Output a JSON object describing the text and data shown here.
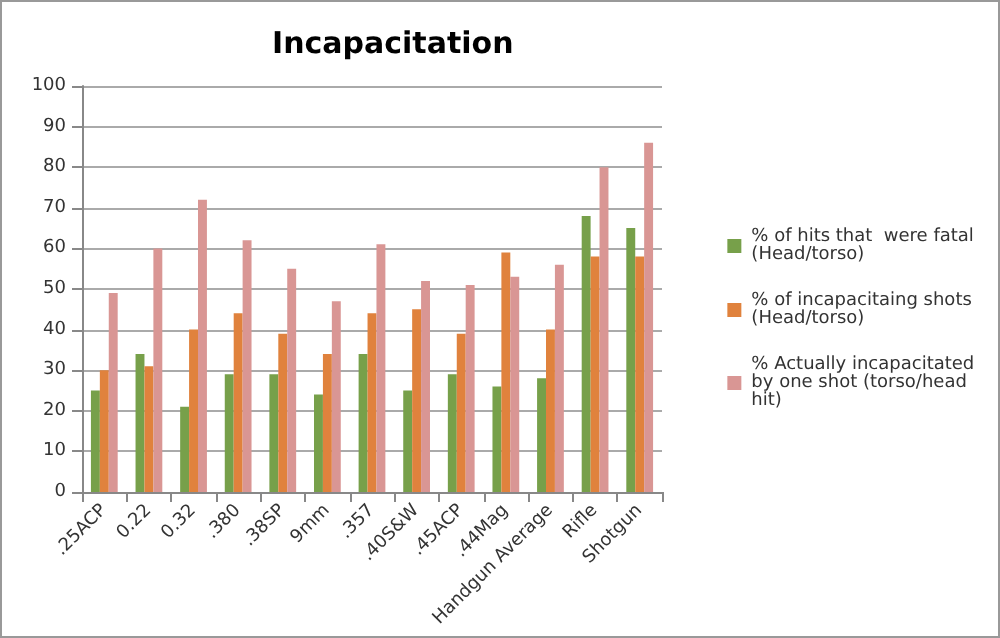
{
  "chart_data": {
    "type": "bar",
    "title": "Incapacitation",
    "categories": [
      ".25ACP",
      "0.22",
      "0.32",
      ".380",
      ".38SP",
      "9mm",
      ".357",
      ".40S&W",
      ".45ACP",
      ".44Mag",
      "Handgun Average",
      "Rifle",
      "Shotgun"
    ],
    "series": [
      {
        "name": "% of hits that  were fatal (Head/torso)",
        "color": "#77a04a",
        "values": [
          25,
          34,
          21,
          29,
          29,
          24,
          34,
          25,
          29,
          26,
          28,
          68,
          65
        ]
      },
      {
        "name": "% of incapacitaing shots (Head/torso)",
        "color": "#e0823d",
        "values": [
          30,
          31,
          40,
          44,
          39,
          34,
          44,
          45,
          39,
          59,
          40,
          58,
          58
        ]
      },
      {
        "name": "% Actually incapacitated  by one shot (torso/head hit)",
        "color": "#d99694",
        "values": [
          49,
          60,
          72,
          62,
          55,
          47,
          61,
          52,
          51,
          53,
          56,
          80,
          86
        ]
      }
    ],
    "ylim": [
      0,
      100
    ],
    "yticks": [
      0,
      10,
      20,
      30,
      40,
      50,
      60,
      70,
      80,
      90,
      100
    ],
    "grid": "y",
    "legend": "right"
  }
}
